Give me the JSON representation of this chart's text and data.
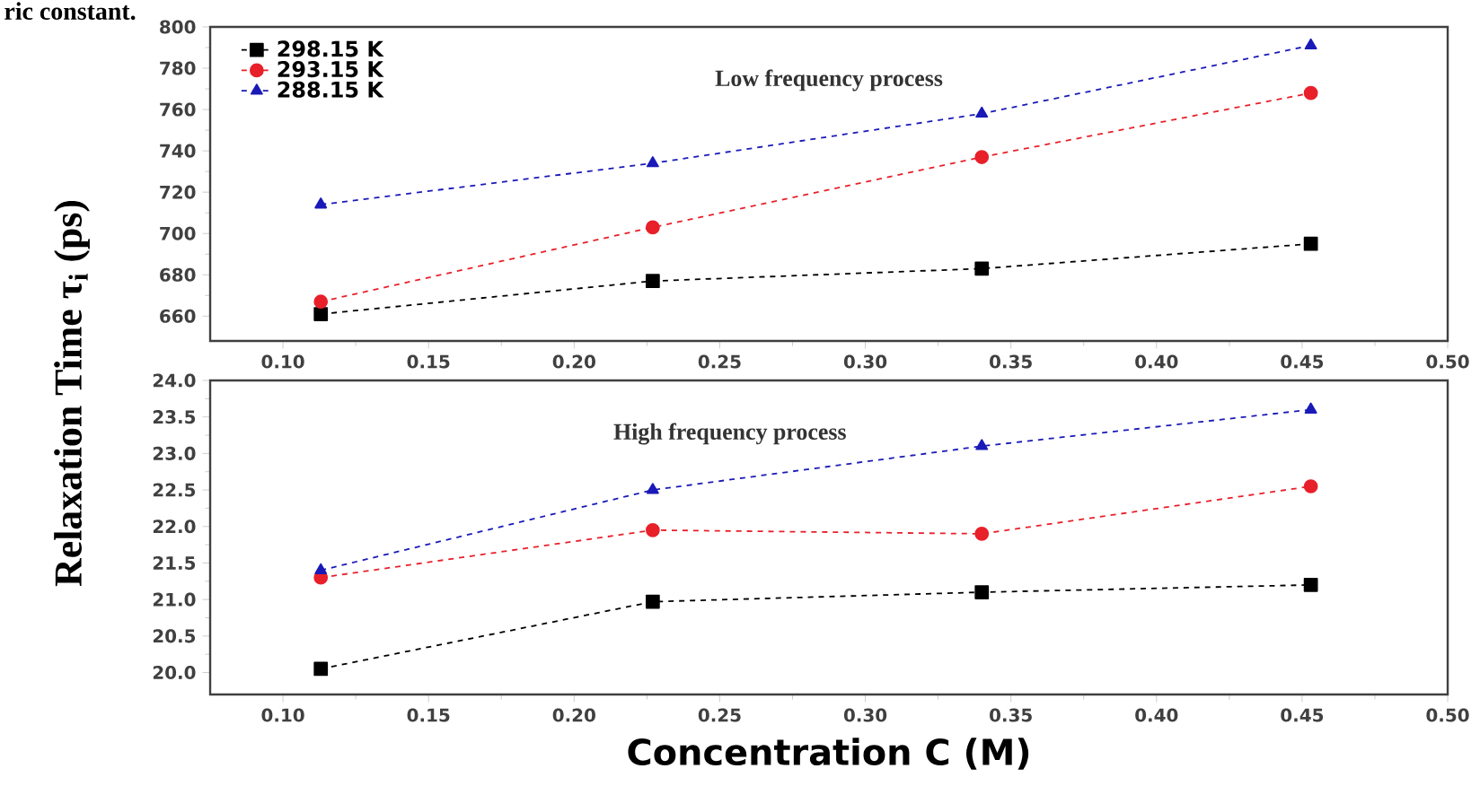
{
  "chart_data": [
    {
      "type": "line",
      "ylabel": "Relaxation Time τ$_{i}$ (ps)",
      "annotations": [
        "ric constant.",
        "Low frequency process"
      ],
      "x": [
        0.113,
        0.227,
        0.34,
        0.453
      ],
      "xlim": [
        0.075,
        0.5
      ],
      "xticks": [
        {
          "value": 0.1,
          "label": "0.10"
        },
        {
          "value": 0.15,
          "label": "0.15"
        },
        {
          "value": 0.2,
          "label": "0.20"
        },
        {
          "value": 0.25,
          "label": "0.25"
        },
        {
          "value": 0.3,
          "label": "0.30"
        },
        {
          "value": 0.35,
          "label": "0.35"
        },
        {
          "value": 0.4,
          "label": "0.40"
        },
        {
          "value": 0.45,
          "label": "0.45"
        },
        {
          "value": 0.5,
          "label": "0.50"
        }
      ],
      "ylim": [
        648,
        800
      ],
      "yticks": [
        660,
        680,
        700,
        720,
        740,
        760,
        780,
        800
      ],
      "legend": "top left",
      "line_style": "dashed",
      "grid": false,
      "series": [
        {
          "name": "298.15 K",
          "color": "#000000",
          "marker": "square",
          "values": [
            661,
            677,
            683,
            695
          ]
        },
        {
          "name": "293.15 K",
          "color": "#e8202a",
          "marker": "circle",
          "values": [
            667,
            703,
            737,
            768
          ]
        },
        {
          "name": "288.15 K",
          "color": "#1a1ab8",
          "marker": "triangle",
          "values": [
            714,
            734,
            758,
            791
          ]
        }
      ]
    },
    {
      "type": "line",
      "xlabel": "Concentration C (M)",
      "annotations": [
        "High frequency process"
      ],
      "x": [
        0.113,
        0.227,
        0.34,
        0.453
      ],
      "xlim": [
        0.075,
        0.5
      ],
      "xticks": [
        {
          "value": 0.1,
          "label": "0.10"
        },
        {
          "value": 0.15,
          "label": "0.15"
        },
        {
          "value": 0.2,
          "label": "0.20"
        },
        {
          "value": 0.25,
          "label": "0.25"
        },
        {
          "value": 0.3,
          "label": "0.30"
        },
        {
          "value": 0.35,
          "label": "0.35"
        },
        {
          "value": 0.4,
          "label": "0.40"
        },
        {
          "value": 0.45,
          "label": "0.45"
        },
        {
          "value": 0.5,
          "label": "0.50"
        }
      ],
      "ylim": [
        19.7,
        24.0
      ],
      "yticks": [
        {
          "value": 20.0,
          "label": "20.0"
        },
        {
          "value": 20.5,
          "label": "20.5"
        },
        {
          "value": 21.0,
          "label": "21.0"
        },
        {
          "value": 21.5,
          "label": "21.5"
        },
        {
          "value": 22.0,
          "label": "22.0"
        },
        {
          "value": 22.5,
          "label": "22.5"
        },
        {
          "value": 23.0,
          "label": "23.0"
        },
        {
          "value": 23.5,
          "label": "23.5"
        },
        {
          "value": 24.0,
          "label": "24.0"
        }
      ],
      "line_style": "dashed",
      "grid": false,
      "series": [
        {
          "color": "#000000",
          "marker": "square",
          "values": [
            20.05,
            20.97,
            21.1,
            21.2
          ]
        },
        {
          "color": "#e8202a",
          "marker": "circle",
          "values": [
            21.3,
            21.95,
            21.9,
            22.55
          ]
        },
        {
          "color": "#1a1ab8",
          "marker": "triangle",
          "values": [
            21.4,
            22.5,
            23.1,
            23.6
          ]
        }
      ]
    }
  ]
}
